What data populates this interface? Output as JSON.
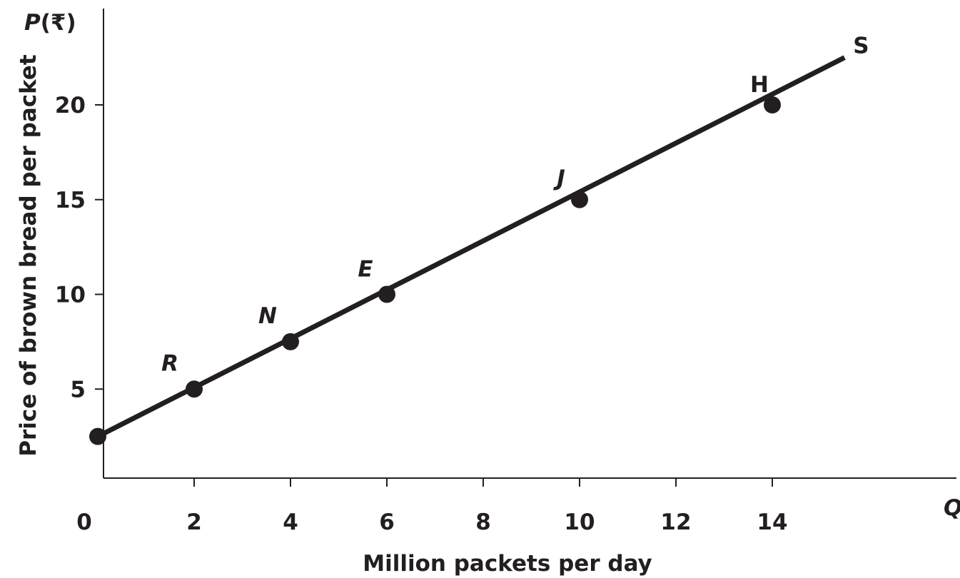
{
  "chart_data": {
    "type": "line",
    "title": "",
    "xlabel": "Million packets per day",
    "ylabel": "Price of brown bread per packet",
    "x_symbol": "Q",
    "y_symbol": "P",
    "y_unit": "(₹)",
    "xlim": [
      0,
      16
    ],
    "ylim": [
      0,
      25
    ],
    "x_ticks": [
      {
        "value": 0,
        "label": "0"
      },
      {
        "value": 2,
        "label": "2"
      },
      {
        "value": 4,
        "label": "4"
      },
      {
        "value": 6,
        "label": "6"
      },
      {
        "value": 8,
        "label": "8"
      },
      {
        "value": 10,
        "label": "10"
      },
      {
        "value": 12,
        "label": "12"
      },
      {
        "value": 14,
        "label": "14"
      }
    ],
    "y_ticks": [
      {
        "value": 5,
        "label": "5"
      },
      {
        "value": 10,
        "label": "10"
      },
      {
        "value": 15,
        "label": "15"
      },
      {
        "value": 20,
        "label": "20"
      }
    ],
    "grid": false,
    "series": [
      {
        "label": "S",
        "color": "#231f20",
        "line": {
          "x_start": 0,
          "y_start": 2.5,
          "x_end": 15.5,
          "y_end": 22.5
        },
        "points": [
          {
            "label": "",
            "x": 0,
            "y": 2.5
          },
          {
            "label": "R",
            "x": 2,
            "y": 5
          },
          {
            "label": "N",
            "x": 4,
            "y": 7.5
          },
          {
            "label": "E",
            "x": 6,
            "y": 10
          },
          {
            "label": "J",
            "x": 10,
            "y": 15
          },
          {
            "label": "H",
            "x": 14,
            "y": 20
          }
        ]
      }
    ]
  }
}
